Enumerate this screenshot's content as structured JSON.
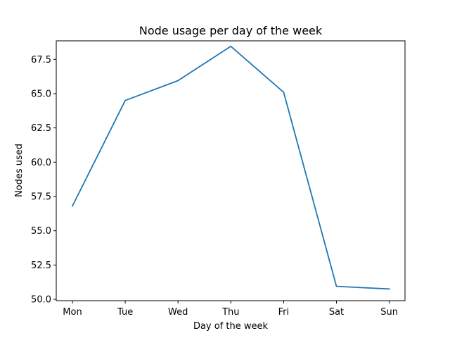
{
  "chart_data": {
    "type": "line",
    "title": "Node usage per day of the week",
    "xlabel": "Day of the week",
    "ylabel": "Nodes used",
    "categories": [
      "Mon",
      "Tue",
      "Wed",
      "Thu",
      "Fri",
      "Sat",
      "Sun"
    ],
    "series": [
      {
        "values": [
          56.8,
          64.5,
          65.95,
          68.45,
          65.1,
          50.95,
          50.75
        ],
        "color": "#1f77b4"
      }
    ],
    "ylim": [
      49.9,
      68.85
    ],
    "yticks": [
      50.0,
      52.5,
      55.0,
      57.5,
      60.0,
      62.5,
      65.0,
      67.5
    ],
    "ytick_labels": [
      "50.0",
      "52.5",
      "55.0",
      "57.5",
      "60.0",
      "62.5",
      "65.0",
      "67.5"
    ],
    "grid": false,
    "legend": "none"
  }
}
